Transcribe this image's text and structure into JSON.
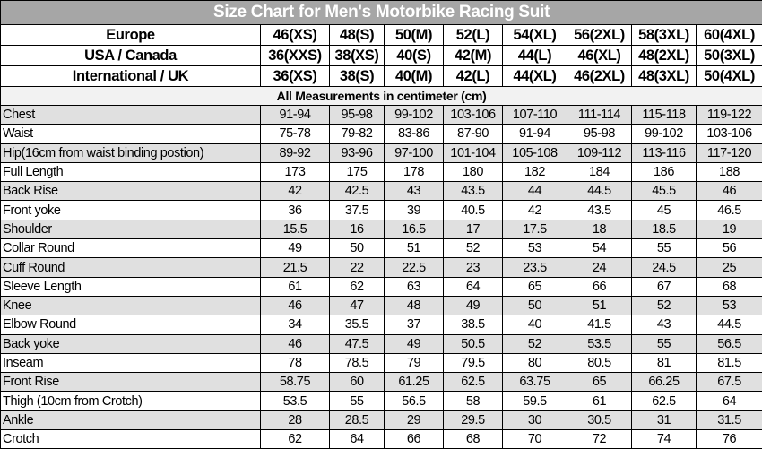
{
  "title": "Size Chart for Men's Motorbike Racing Suit",
  "size_rows": [
    {
      "label": "Europe",
      "values": [
        "46(XS)",
        "48(S)",
        "50(M)",
        "52(L)",
        "54(XL)",
        "56(2XL)",
        "58(3XL)",
        "60(4XL)"
      ]
    },
    {
      "label": "USA / Canada",
      "values": [
        "36(XXS)",
        "38(XS)",
        "40(S)",
        "42(M)",
        "44(L)",
        "46(XL)",
        "48(2XL)",
        "50(3XL)"
      ]
    },
    {
      "label": "International / UK",
      "values": [
        "36(XS)",
        "38(S)",
        "40(M)",
        "42(L)",
        "44(XL)",
        "46(2XL)",
        "48(3XL)",
        "50(4XL)"
      ]
    }
  ],
  "note": "All Measurements in centimeter (cm)",
  "measurements": [
    {
      "label": "Chest",
      "values": [
        "91-94",
        "95-98",
        "99-102",
        "103-106",
        "107-110",
        "111-114",
        "115-118",
        "119-122"
      ]
    },
    {
      "label": "Waist",
      "values": [
        "75-78",
        "79-82",
        "83-86",
        "87-90",
        "91-94",
        "95-98",
        "99-102",
        "103-106"
      ]
    },
    {
      "label": "Hip(16cm from waist binding postion)",
      "values": [
        "89-92",
        "93-96",
        "97-100",
        "101-104",
        "105-108",
        "109-112",
        "113-116",
        "117-120"
      ]
    },
    {
      "label": "Full Length",
      "values": [
        "173",
        "175",
        "178",
        "180",
        "182",
        "184",
        "186",
        "188"
      ]
    },
    {
      "label": "Back Rise",
      "values": [
        "42",
        "42.5",
        "43",
        "43.5",
        "44",
        "44.5",
        "45.5",
        "46"
      ]
    },
    {
      "label": "Front yoke",
      "values": [
        "36",
        "37.5",
        "39",
        "40.5",
        "42",
        "43.5",
        "45",
        "46.5"
      ]
    },
    {
      "label": "Shoulder",
      "values": [
        "15.5",
        "16",
        "16.5",
        "17",
        "17.5",
        "18",
        "18.5",
        "19"
      ]
    },
    {
      "label": "Collar Round",
      "values": [
        "49",
        "50",
        "51",
        "52",
        "53",
        "54",
        "55",
        "56"
      ]
    },
    {
      "label": "Cuff Round",
      "values": [
        "21.5",
        "22",
        "22.5",
        "23",
        "23.5",
        "24",
        "24.5",
        "25"
      ]
    },
    {
      "label": "Sleeve Length",
      "values": [
        "61",
        "62",
        "63",
        "64",
        "65",
        "66",
        "67",
        "68"
      ]
    },
    {
      "label": "Knee",
      "values": [
        "46",
        "47",
        "48",
        "49",
        "50",
        "51",
        "52",
        "53"
      ]
    },
    {
      "label": "Elbow Round",
      "values": [
        "34",
        "35.5",
        "37",
        "38.5",
        "40",
        "41.5",
        "43",
        "44.5"
      ]
    },
    {
      "label": "Back yoke",
      "values": [
        "46",
        "47.5",
        "49",
        "50.5",
        "52",
        "53.5",
        "55",
        "56.5"
      ]
    },
    {
      "label": "Inseam",
      "values": [
        "78",
        "78.5",
        "79",
        "79.5",
        "80",
        "80.5",
        "81",
        "81.5"
      ]
    },
    {
      "label": "Front Rise",
      "values": [
        "58.75",
        "60",
        "61.25",
        "62.5",
        "63.75",
        "65",
        "66.25",
        "67.5"
      ]
    },
    {
      "label": "Thigh (10cm from Crotch)",
      "values": [
        "53.5",
        "55",
        "56.5",
        "58",
        "59.5",
        "61",
        "62.5",
        "64"
      ]
    },
    {
      "label": "Ankle",
      "values": [
        "28",
        "28.5",
        "29",
        "29.5",
        "30",
        "30.5",
        "31",
        "31.5"
      ]
    },
    {
      "label": "Crotch",
      "values": [
        "62",
        "64",
        "66",
        "68",
        "70",
        "72",
        "74",
        "76"
      ]
    }
  ],
  "colors": {
    "title_bg": "#a6a6a6",
    "alt_row_bg": "#e0e0e0",
    "note_bg": "#f2f2f2"
  }
}
